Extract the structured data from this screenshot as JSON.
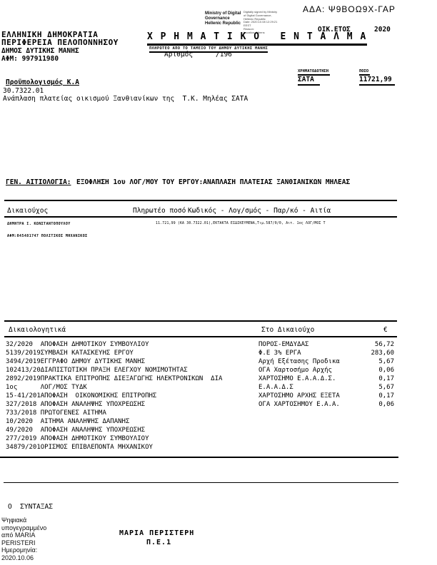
{
  "ada": "ΑΔΑ: Ψ9ΒΟΩ9Χ-ΓΑΡ",
  "stamp": {
    "org_lines": [
      "Ministry of Digital",
      "Governance",
      "Hellenic Republic"
    ],
    "sig_lines": [
      "Digitally signed by Ministry",
      "of Digital Governance,",
      "Hellenic Republic",
      "Date: 2020.10.08 12:29:21",
      "EEST",
      "Reason:",
      "Location: Athens"
    ]
  },
  "header": {
    "fiscal_year_label": "ΟΙΚ.ΕΤΟΣ",
    "fiscal_year": "2020",
    "authority": [
      "ΕΛΛΗΝΙΚΗ ΔΗΜΟΚΡΑΤΙΑ",
      "ΠΕΡΙΦΕΡΕΙΑ ΠΕΛΟΠΟΝΝΗΣΟΥ",
      "ΔΗΜΟΣ ΔΥΤΙΚΗΣ ΜΑΝΗΣ",
      "ΑΦΜ: 997911980"
    ],
    "title": "Χ Ρ Η Μ Α Τ Ι Κ Ο   Ε Ν Τ Α Λ Μ Α",
    "subtitle": "ΠΛΗΡΩΤΕΟ ΑΠΟ ΤΟ ΤΑΜΕΙΟ ΤΟΥ ΔΗΜΟΥ ΔΥΤΙΚΗΣ ΜΑΝΗΣ",
    "number_label": "Αριθμός",
    "number_value": "/196"
  },
  "funding": {
    "funding_header": "ΧΡΗΜΑΤΟΔΟΤΗΣΗ",
    "amount_header": "ΠΟΣΟ",
    "funding_value": "ΣΑΤΑ",
    "amount_value": "11721,99"
  },
  "budget": {
    "label": "Προϋπολογισμός Κ.Α",
    "code": "30.7322.01",
    "description": "Ανάπλαση πλατείας οικισμού Ξανθιανίκων της  Τ.Κ. Μηλέας ΣΑΤΑ"
  },
  "general_reason": {
    "label": "ΓΕΝ. ΑΙΤΙΟΛΟΓΙΑ:",
    "text": "ΕΞΟΦΛΗΣΗ 1ου ΛΟΓ/ΜΟΥ ΤΟΥ ΕΡΓΟΥ:ΑΝΑΠΛΑΣΗ ΠΛΑΤΕΙΑΣ ΞΑΝΘΙΑΝΙΚΩΝ ΜΗΛΕΑΣ"
  },
  "beneficiary_table": {
    "col_beneficiary": "Δικαιούχος",
    "col_payable": "Πληρωτέο ποσό",
    "col_code": "Κωδικός - Λογ/σμός - Παρ/κό - Αιτία",
    "name": "ΔΗΜΗΤΡΑ Ι. ΚΩΝΣΤΑΝΤΟΠΟΥΛΟΥ",
    "details": "ΑΦΜ:045481747 ΠΟΛΙΤΙΚΟΣ ΜΗΧΑΝΙΚΟΣ",
    "payment_line": "11.721,99 (ΚΑ 30.7322.01),ΕΚΤΑΚΤΑ ΕΙΔΙΚΕΥΜΕΝΑ,Τιμ.587/0/0, Αιτ. 1ος ΛΟΓ/ΜΟΣ Τ"
  },
  "documents_table": {
    "col_documents": "Δικαιολογητικά",
    "col_to_beneficiary": "Στο Δικαιούχο",
    "col_currency": "€",
    "rows": [
      {
        "doc": "32/2020  ΑΠΟΦΑΣΗ ΔΗΜΟΤΙΚΟΥ ΣΥΜΒΟΥΛΙΟΥ",
        "to_beneficiary": "ΠΟΡΟΣ-ΕΜΔΥΔΑΣ",
        "amount": "56,72"
      },
      {
        "doc": "5139/2019ΣΥΜΒΑΣΗ ΚΑΤΑΣΚΕΥΗΣ ΕΡΓΟΥ",
        "to_beneficiary": "Φ.Ε 3% ΕΡΓΑ",
        "amount": "283,60"
      },
      {
        "doc": "3494/2019ΕΓΓΡΑΦΟ ΔΗΜΟΥ ΔΥΤΙΚΗΣ ΜΑΝΗΣ",
        "to_beneficiary": "Αρχή Εξέτασης Προδικα",
        "amount": "5,67"
      },
      {
        "doc": "102413/20ΔΙΑΠΙΣΤΩΤΙΚΗ ΠΡΑΞΗ ΕΛΕΓΧΟΥ ΝΟΜΙΜΟΤΗΤΑΣ",
        "to_beneficiary": "ΟΓΑ Χαρτοσήμο Αρχής",
        "amount": "0,06"
      },
      {
        "doc": "2892/2019ΠΡΑΚΤΙΚΑ ΕΠΙΤΡΟΠΗΣ ΔΙΕΞΑΓΩΓΗΣ ΗΛΕΚΤΡΟΝΙΚΩΝ  ΔΙΑ",
        "to_beneficiary": "ΧΑΡΤΟΣΗΜΟ Ε.Α.Α.Δ.Σ.",
        "amount": "0,17"
      },
      {
        "doc": "1ος      ΛΟΓ/ΜΟΣ ΤΥΔΚ",
        "to_beneficiary": "Ε.Α.Α.Δ.Σ",
        "amount": "5,67"
      },
      {
        "doc": "15-41/201ΑΠΟΦΑΣΗ  ΟΙΚΟΝΟΜΙΚΗΣ ΕΠΙΤΡΟΠΗΣ",
        "to_beneficiary": "ΧΑΡΤΟΣΗΜΟ ΑΡΧΗΣ ΕΞΕΤΑ",
        "amount": "0,17"
      },
      {
        "doc": "327/2018 ΑΠΟΦΑΣΗ ΑΝΑΛΗΨΗΣ ΥΠΟΧΡΕΩΣΗΣ",
        "to_beneficiary": "ΟΓΑ ΧΑΡΤΟΣΗΜΟΥ Ε.Α.Α.",
        "amount": "0,06"
      },
      {
        "doc": "733/2018 ΠΡΩΤΟΓΕΝΕΣ ΑΙΤΗΜΑ",
        "to_beneficiary": "",
        "amount": ""
      },
      {
        "doc": "10/2020  ΑΙΤΗΜΑ ΑΝΑΛΗΨΗΣ ΔΑΠΑΝΗΣ",
        "to_beneficiary": "",
        "amount": ""
      },
      {
        "doc": "49/2020  ΑΠΟΦΑΣΗ ΑΝΑΛΗΨΗΣ ΥΠΟΧΡΕΩΣΗΣ",
        "to_beneficiary": "",
        "amount": ""
      },
      {
        "doc": "277/2019 ΑΠΟΦΑΣΗ ΔΗΜΟΤΙΚΟΥ ΣΥΜΒΟΥΛΙΟΥ",
        "to_beneficiary": "",
        "amount": ""
      },
      {
        "doc": "34879/201ΟΡΙΣΜΟΣ ΕΠΙΒΛΕΠΟΝΤΑ ΜΗΧΑΝΙΚΟΥ",
        "to_beneficiary": "",
        "amount": ""
      }
    ]
  },
  "footer": {
    "drafter_label": "Ο  ΣΥΝΤΑΞΑΣ",
    "digital_signature_lines": [
      "Ψηφιακά",
      "υπογεγραμμένο",
      "από MARIA",
      "PERISTERI",
      "Ημερομηνία:",
      "2020.10.06"
    ],
    "signer_name": "ΜΑΡΙΑ ΠΕΡΙΣΤΕΡΗ",
    "signer_grade": "Π.Ε.1"
  }
}
